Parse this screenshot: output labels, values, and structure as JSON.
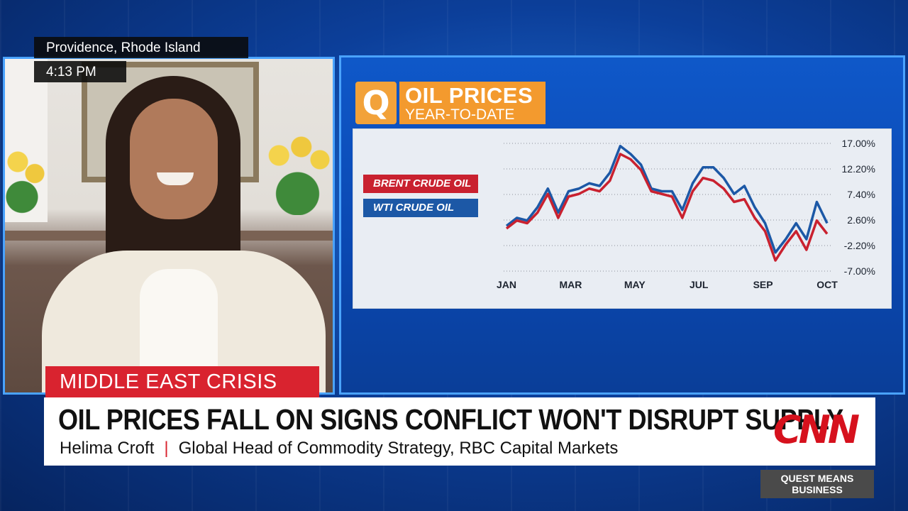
{
  "location": "Providence, Rhode Island",
  "time": "4:13 PM",
  "graphic": {
    "logo_letter": "Q",
    "title": "OIL PRICES",
    "subtitle": "YEAR-TO-DATE"
  },
  "colors": {
    "brent": "#c9212f",
    "wti": "#1c58a6",
    "accent_orange": "#f39a2e",
    "cnn_red": "#d6111d"
  },
  "chart_data": {
    "type": "line",
    "title": "OIL PRICES",
    "subtitle": "YEAR-TO-DATE",
    "x_ticks": [
      "JAN",
      "MAR",
      "MAY",
      "JUL",
      "SEP",
      "OCT"
    ],
    "y_ticks": [
      "17.00%",
      "12.20%",
      "7.40%",
      "2.60%",
      "-2.20%",
      "-7.00%"
    ],
    "ylim": [
      -7.0,
      17.0
    ],
    "xlim": [
      0,
      9.3
    ],
    "grid": "horizontal-dotted",
    "legend_position": "left",
    "x": [
      0,
      0.3,
      0.6,
      0.9,
      1.2,
      1.5,
      1.8,
      2.1,
      2.4,
      2.7,
      3.0,
      3.3,
      3.6,
      3.9,
      4.2,
      4.5,
      4.8,
      5.1,
      5.4,
      5.7,
      6.0,
      6.3,
      6.6,
      6.9,
      7.2,
      7.5,
      7.8,
      8.1,
      8.4,
      8.7,
      9.0,
      9.3
    ],
    "series": [
      {
        "name": "BRENT CRUDE OIL",
        "values": [
          1.0,
          2.5,
          2.0,
          4.0,
          7.5,
          3.0,
          7.0,
          7.5,
          8.5,
          8.0,
          10.0,
          15.0,
          14.0,
          12.0,
          8.0,
          7.5,
          7.0,
          3.0,
          8.0,
          10.5,
          10.0,
          8.5,
          6.0,
          6.5,
          3.0,
          0.5,
          -5.0,
          -2.0,
          0.5,
          -3.0,
          2.5,
          0.0
        ]
      },
      {
        "name": "WTI CRUDE OIL",
        "values": [
          1.5,
          3.0,
          2.5,
          5.0,
          8.5,
          4.0,
          8.0,
          8.5,
          9.5,
          9.0,
          11.5,
          16.5,
          15.0,
          13.0,
          8.5,
          8.0,
          8.0,
          4.5,
          9.5,
          12.5,
          12.5,
          10.5,
          7.5,
          9.0,
          5.0,
          2.0,
          -3.5,
          -1.0,
          2.0,
          -1.0,
          6.0,
          2.0
        ]
      }
    ]
  },
  "crisis_tag": "MIDDLE EAST CRISIS",
  "headline": "OIL PRICES FALL ON SIGNS CONFLICT WON'T DISRUPT SUPPLY",
  "guest": {
    "name": "Helima Croft",
    "separator": "|",
    "title": "Global Head of Commodity Strategy, RBC Capital Markets"
  },
  "network": "CNN",
  "show": "QUEST MEANS BUSINESS"
}
